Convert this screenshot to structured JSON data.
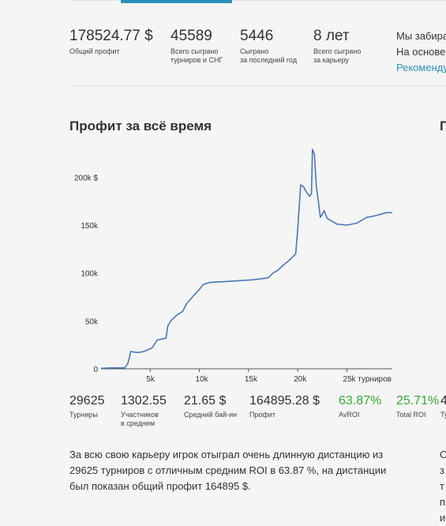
{
  "summary": [
    {
      "value": "178524.77 $",
      "label_lines": [
        "Общий профит"
      ]
    },
    {
      "value": "45589",
      "label_lines": [
        "Всего сыграно",
        "турниров и СНГ"
      ]
    },
    {
      "value": "5446",
      "label_lines": [
        "Сыграно",
        "за последний год"
      ]
    },
    {
      "value": "8 лет",
      "label_lines": [
        "Всего сыграно",
        "за карьеру"
      ]
    }
  ],
  "side_text": {
    "line1": "Мы забира",
    "line2": "На основе",
    "link": "Рекоменду"
  },
  "section": {
    "title": "Профит за всё время",
    "title_right": "П"
  },
  "chart_data": {
    "type": "line",
    "title": "",
    "xlabel": "турниров",
    "ylabel": "",
    "xlim": [
      0,
      29625
    ],
    "ylim": [
      0,
      230000
    ],
    "x_ticks": [
      {
        "value": 5000,
        "label": "5k"
      },
      {
        "value": 10000,
        "label": "10k"
      },
      {
        "value": 15000,
        "label": "15k"
      },
      {
        "value": 20000,
        "label": "20k"
      },
      {
        "value": 25000,
        "label": "25k турниров"
      }
    ],
    "y_ticks": [
      {
        "value": 0,
        "label": "0"
      },
      {
        "value": 50000,
        "label": "50k"
      },
      {
        "value": 100000,
        "label": "100k"
      },
      {
        "value": 150000,
        "label": "150k"
      },
      {
        "value": 200000,
        "label": "200k $"
      }
    ],
    "line_color": "#4a78b5",
    "series": [
      {
        "x": [
          0,
          1000,
          2400,
          2700,
          2900,
          3000,
          3800,
          4300,
          4800,
          5200,
          5700,
          6600,
          6800,
          7100,
          7700,
          8300,
          8700,
          9300,
          10000,
          10400,
          11000,
          11500,
          12600,
          14000,
          15500,
          17000,
          17500,
          18000,
          18500,
          19000,
          19500,
          19800,
          20000,
          20300,
          20600,
          20800,
          21200,
          21400,
          21500,
          21700,
          21900,
          22100,
          22300,
          22700,
          23000,
          23500,
          24000,
          25000,
          26000,
          27000,
          28000,
          29000,
          29625
        ],
        "y": [
          500,
          1000,
          1000,
          5000,
          12000,
          18000,
          17000,
          18000,
          20000,
          22000,
          30000,
          32000,
          45000,
          50000,
          56000,
          60000,
          68000,
          75000,
          83000,
          88000,
          90000,
          90500,
          91000,
          92000,
          93000,
          95000,
          100000,
          103000,
          108000,
          112000,
          117000,
          120000,
          145000,
          192000,
          190000,
          186000,
          180000,
          183000,
          229000,
          224000,
          190000,
          175000,
          158000,
          165000,
          157000,
          154000,
          151000,
          150000,
          152000,
          158000,
          160000,
          163000,
          163000
        ]
      }
    ]
  },
  "bottom_stats": [
    {
      "value": "29625",
      "label_lines": [
        "Турниры"
      ],
      "green": false
    },
    {
      "value": "1302.55",
      "label_lines": [
        "Участников",
        "в среднем"
      ],
      "green": false
    },
    {
      "value": "21.65 $",
      "label_lines": [
        "Средний бай-ин"
      ],
      "green": false
    },
    {
      "value": "164895.28 $",
      "label_lines": [
        "Профит"
      ],
      "green": false
    },
    {
      "value": "63.87%",
      "label_lines": [
        "AvROI"
      ],
      "green": true
    },
    {
      "value": "25.71%",
      "label_lines": [
        "Total ROI"
      ],
      "green": true
    },
    {
      "value": "4",
      "label_lines": [
        "Ту"
      ],
      "green": false
    }
  ],
  "description": "За всю свою карьеру игрок отыграл очень длинную дистанцию из 29625 турниров с отличным средним ROI в 63.87 %, на дистанции был показан общий профит 164895 $.",
  "right_column": [
    "С",
    "з",
    "т",
    "п",
    "и"
  ]
}
